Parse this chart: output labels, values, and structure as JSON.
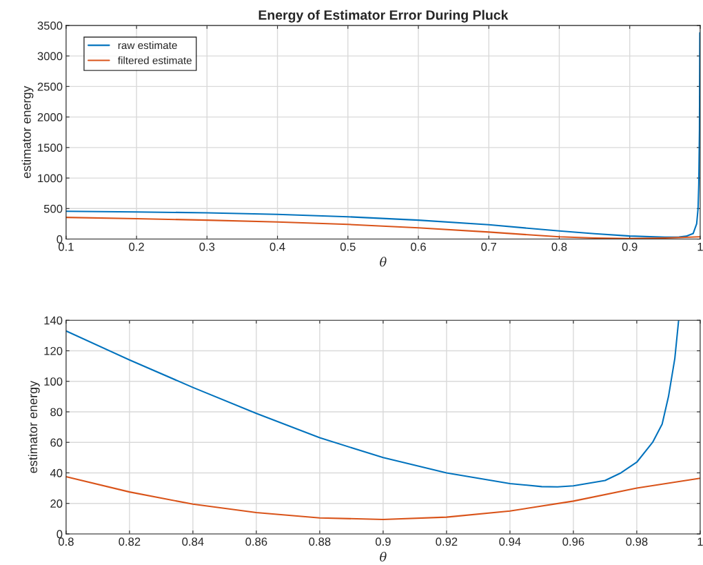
{
  "chart_data": [
    {
      "type": "line",
      "title": "Energy of Estimator Error During Pluck",
      "xlabel": "θ",
      "ylabel": "estimator energy",
      "xlim": [
        0.1,
        1
      ],
      "xticks": [
        0.1,
        0.2,
        0.3,
        0.4,
        0.5,
        0.6,
        0.7,
        0.8,
        0.9,
        1
      ],
      "ylim": [
        0,
        3500
      ],
      "yticks": [
        0,
        500,
        1000,
        1500,
        2000,
        2500,
        3000,
        3500
      ],
      "grid": true,
      "legend": "top left",
      "series": [
        {
          "name": "raw estimate",
          "color": "#0072bd",
          "x": [
            0.1,
            0.2,
            0.3,
            0.4,
            0.5,
            0.6,
            0.7,
            0.8,
            0.85,
            0.9,
            0.95,
            0.97,
            0.98,
            0.99,
            0.995,
            0.997,
            0.998,
            0.999,
            0.9995
          ],
          "values": [
            455,
            445,
            430,
            405,
            365,
            310,
            235,
            133,
            88,
            50,
            31,
            35,
            47,
            90,
            250,
            500,
            900,
            1800,
            3380
          ]
        },
        {
          "name": "filtered estimate",
          "color": "#d95319",
          "x": [
            0.1,
            0.2,
            0.3,
            0.4,
            0.5,
            0.6,
            0.7,
            0.8,
            0.85,
            0.9,
            0.95,
            1.0
          ],
          "values": [
            355,
            335,
            310,
            280,
            240,
            185,
            115,
            37,
            17,
            9.5,
            18,
            36.5
          ]
        }
      ]
    },
    {
      "type": "line",
      "xlabel": "θ",
      "ylabel": "estimator energy",
      "xlim": [
        0.8,
        1
      ],
      "xticks": [
        0.8,
        0.82,
        0.84,
        0.86,
        0.88,
        0.9,
        0.92,
        0.94,
        0.96,
        0.98,
        1
      ],
      "ylim": [
        0,
        140
      ],
      "yticks": [
        0,
        20,
        40,
        60,
        80,
        100,
        120,
        140
      ],
      "grid": true,
      "series": [
        {
          "color": "#0072bd",
          "x": [
            0.8,
            0.82,
            0.84,
            0.86,
            0.88,
            0.9,
            0.92,
            0.94,
            0.95,
            0.955,
            0.96,
            0.97,
            0.975,
            0.98,
            0.985,
            0.988,
            0.99,
            0.992,
            0.9932
          ],
          "values": [
            133,
            114,
            96,
            79,
            63,
            50,
            40,
            33,
            31,
            30.8,
            31.5,
            35,
            40,
            47,
            60,
            72,
            90,
            115,
            140
          ]
        },
        {
          "color": "#d95319",
          "x": [
            0.8,
            0.82,
            0.84,
            0.86,
            0.88,
            0.9,
            0.92,
            0.94,
            0.96,
            0.98,
            1.0
          ],
          "values": [
            37.5,
            27.5,
            19.5,
            14,
            10.5,
            9.5,
            11,
            15,
            21.5,
            30,
            36.5
          ]
        }
      ]
    }
  ]
}
